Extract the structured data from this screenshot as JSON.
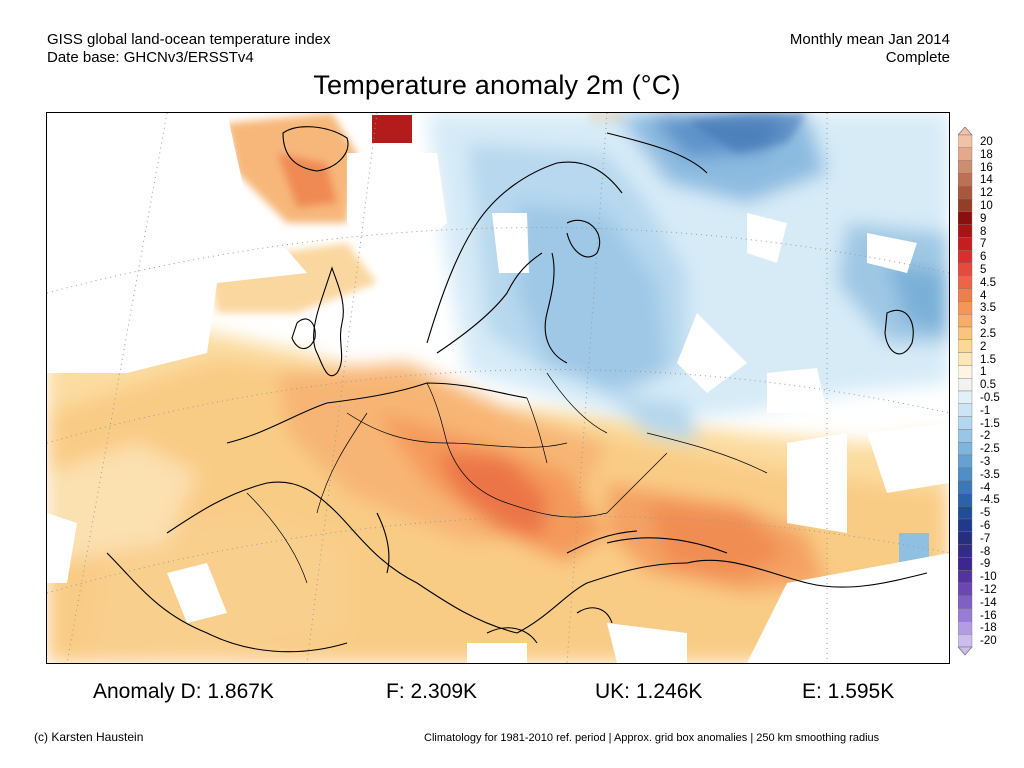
{
  "header": {
    "line1_left": "GISS global land-ocean temperature index",
    "line2_left": "Date base: GHCNv3/ERSSTv4",
    "line1_right": "Monthly mean Jan 2014",
    "line2_right": "Complete"
  },
  "title": "Temperature anomaly 2m (°C)",
  "legend": {
    "labels": [
      "20",
      "18",
      "16",
      "14",
      "12",
      "10",
      "9",
      "8",
      "7",
      "6",
      "5",
      "4.5",
      "4",
      "3.5",
      "3",
      "2.5",
      "2",
      "1.5",
      "1",
      "0.5",
      "-0.5",
      "-1",
      "-1.5",
      "-2",
      "-2.5",
      "-3",
      "-3.5",
      "-4",
      "-4.5",
      "-5",
      "-6",
      "-7",
      "-8",
      "-9",
      "-10",
      "-12",
      "-14",
      "-16",
      "-18",
      "-20"
    ],
    "colors": [
      "#f2c2a8",
      "#e3a98a",
      "#d08d6e",
      "#bd7154",
      "#a9573c",
      "#943f25",
      "#8a0f0f",
      "#a81414",
      "#c41f1f",
      "#d83030",
      "#e54a3c",
      "#ec6646",
      "#f07e4c",
      "#f49656",
      "#f7ad66",
      "#f9c47d",
      "#fbd896",
      "#fde8b5",
      "#fbf5e2",
      "#f2f2f2",
      "#e2f0f9",
      "#cce5f4",
      "#b3d7ee",
      "#98c7e6",
      "#7fb5dc",
      "#66a2d1",
      "#4f8ec6",
      "#3b78b8",
      "#2b62a8",
      "#1f4d98",
      "#1e3a88",
      "#26307a",
      "#322c82",
      "#3d2690",
      "#54339e",
      "#6a47b3",
      "#8060c4",
      "#997dd4",
      "#b39ce2",
      "#cdbcee"
    ]
  },
  "stats": {
    "d": "Anomaly D: 1.867K",
    "f": "F: 2.309K",
    "uk": "UK: 1.246K",
    "e": "E: 1.595K"
  },
  "footer": {
    "left": "(c) Karsten Haustein",
    "right": "Climatology for 1981-2010 ref. period | Approx. grid box anomalies | 250 km smoothing radius"
  }
}
